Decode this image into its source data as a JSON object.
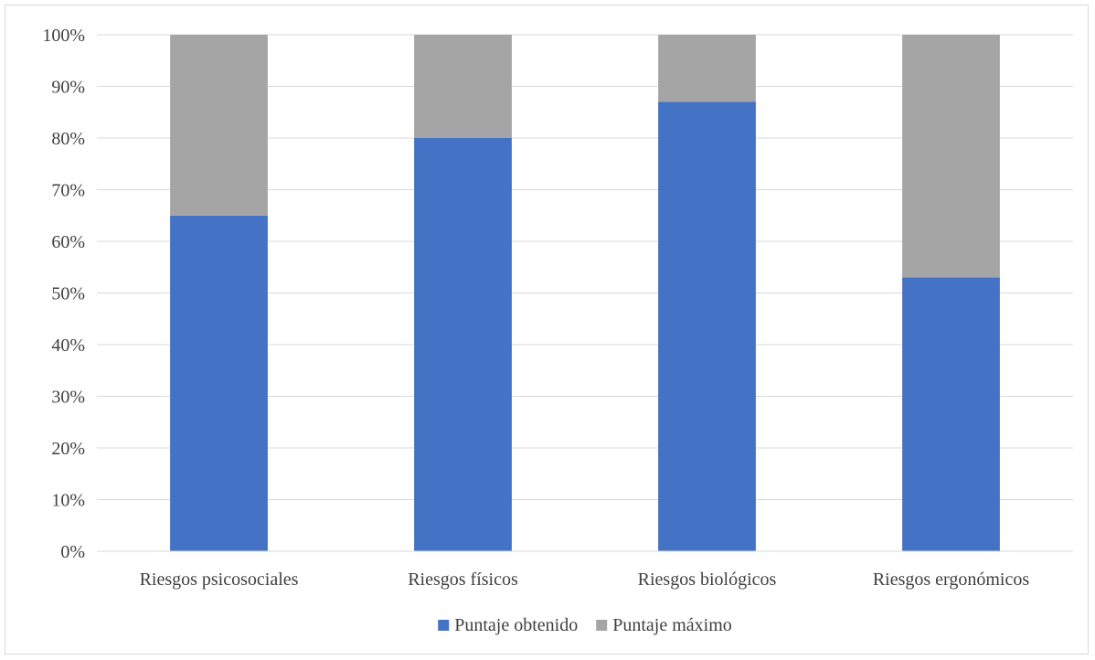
{
  "chart_data": {
    "type": "bar",
    "stacked": true,
    "percent_stacked": true,
    "categories": [
      "Riesgos psicosociales",
      "Riesgos físicos",
      "Riesgos biológicos",
      "Riesgos ergonómicos"
    ],
    "series": [
      {
        "name": "Puntaje obtenido",
        "color": "#4472c4",
        "values": [
          65,
          80,
          87,
          53
        ]
      },
      {
        "name": "Puntaje máximo",
        "color": "#a5a5a5",
        "values": [
          35,
          20,
          13,
          47
        ]
      }
    ],
    "y_ticks": [
      "0%",
      "10%",
      "20%",
      "30%",
      "40%",
      "50%",
      "60%",
      "70%",
      "80%",
      "90%",
      "100%"
    ],
    "ylim": [
      0,
      100
    ],
    "grid": true,
    "legend_position": "bottom",
    "title": "",
    "xlabel": "",
    "ylabel": ""
  }
}
